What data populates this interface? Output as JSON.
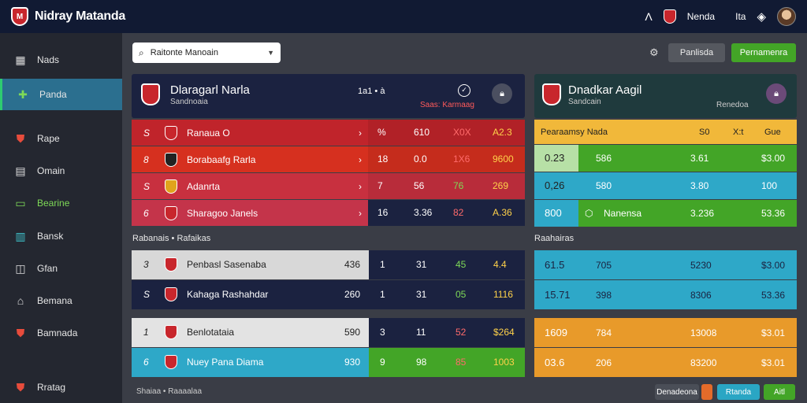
{
  "app": {
    "title": "Nidray Matanda"
  },
  "topbar": {
    "team_label": "Nenda",
    "tools_label": "Ita"
  },
  "sidebar": {
    "items": [
      {
        "label": "Nads"
      },
      {
        "label": "Panda"
      },
      {
        "label": "Rape"
      },
      {
        "label": "Omain"
      },
      {
        "label": "Bearine"
      },
      {
        "label": "Bansk"
      },
      {
        "label": "Gfan"
      },
      {
        "label": "Bemana"
      },
      {
        "label": "Bamnada"
      },
      {
        "label": "Rratag"
      }
    ]
  },
  "search": {
    "value": "Raitonte Manoain"
  },
  "toolbar": {
    "btn1": "Panlisda",
    "btn2": "Pernamenra"
  },
  "left_panel": {
    "title": "Dlaragarl Narla",
    "subtitle": "Sandnoaia",
    "score": "1a1 • à",
    "status": "Saas: Karmaag",
    "rows": [
      {
        "n": "S",
        "team": "Ranaua O",
        "c1": "%",
        "c2": "610",
        "c3": "X0X",
        "c4": "A2.3"
      },
      {
        "n": "8",
        "team": "Borabaafg Rarla",
        "c1": "18",
        "c2": "0.0",
        "c3": "1X6",
        "c4": "9600"
      },
      {
        "n": "S",
        "team": "Adanrta",
        "c1": "7",
        "c2": "56",
        "c3": "76",
        "c4": "269"
      },
      {
        "n": "6",
        "team": "Sharagoo Janels",
        "c1": "16",
        "c2": "3.36",
        "c3": "82",
        "c4": "A.36"
      }
    ],
    "section2": "Rabanais • Rafaikas",
    "rows2": [
      {
        "n": "3",
        "team": "Penbasl Sasenaba",
        "v": "436",
        "c1": "1",
        "c2": "31",
        "c3": "45",
        "c4": "4.4"
      },
      {
        "n": "S",
        "team": "Kahaga Rashahdar",
        "v": "260",
        "c1": "1",
        "c2": "31",
        "c3": "05",
        "c4": "1116"
      }
    ],
    "rows3": [
      {
        "n": "1",
        "team": "Benlotataia",
        "v": "590",
        "c1": "3",
        "c2": "11",
        "c3": "52",
        "c4": "$264"
      },
      {
        "n": "6",
        "team": "Nuey Pana Diama",
        "v": "930",
        "c1": "9",
        "c2": "98",
        "c3": "85",
        "c4": "1003"
      }
    ],
    "footer": "Shaiaa • Raaaalaa"
  },
  "right_panel": {
    "title": "Dnadkar Aagil",
    "subtitle": "Sandcain",
    "status": "Renedoa",
    "header": {
      "label": "Pearaamsy Nada",
      "c1": "S0",
      "c2": "X:t",
      "c3": "Gue"
    },
    "rows": [
      {
        "a": "0.23",
        "b": "586",
        "c": "3.61",
        "d": "$3.00"
      },
      {
        "a": "0,26",
        "b": "580",
        "c": "3.80",
        "d": "100"
      },
      {
        "a": "800",
        "b": "Nanensa",
        "c": "3.236",
        "d": "53.36"
      }
    ],
    "section2": "Raahairas",
    "rows2": [
      {
        "a": "61.5",
        "b": "705",
        "c": "5230",
        "d": "$3.00"
      },
      {
        "a": "15.71",
        "b": "398",
        "c": "8306",
        "d": "53.36"
      }
    ],
    "rows3": [
      {
        "a": "1609",
        "b": "784",
        "c": "13008",
        "d": "$3.01"
      },
      {
        "a": "03.6",
        "b": "206",
        "c": "83200",
        "d": "$3.01"
      }
    ],
    "footer": {
      "btn1": "Denadeona",
      "btn2": "Rtanda",
      "btn3": "Aitl"
    }
  }
}
